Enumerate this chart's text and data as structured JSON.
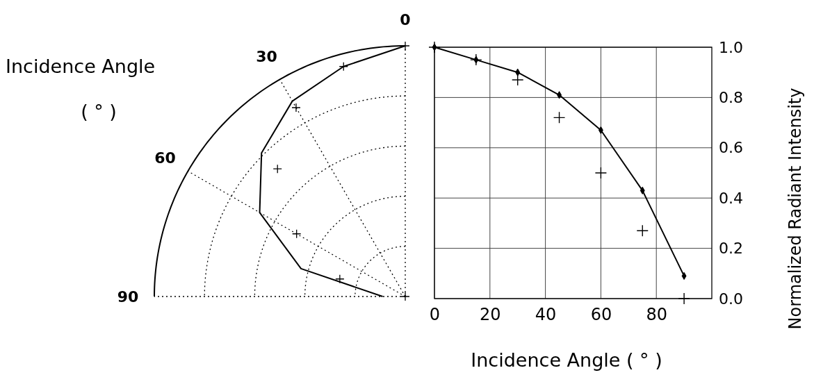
{
  "chart_data": [
    {
      "type": "other",
      "title": "Incidence Angle",
      "subtitle": "( ° )",
      "annotations": [
        "0",
        "30",
        "60",
        "90"
      ]
    },
    {
      "type": "line",
      "xlabel": "Incidence Angle ( ° )",
      "ylabel": "Normalized Radiant Intensity",
      "x": [
        0,
        15,
        30,
        45,
        60,
        75,
        90
      ],
      "xlim": [
        0,
        100
      ],
      "xticks": [
        0,
        20,
        40,
        60,
        80
      ],
      "ylim": [
        0,
        1
      ],
      "yticks": [
        {
          "value": 0,
          "label": "0.0"
        },
        0.2,
        0.4,
        0.6,
        0.8,
        {
          "value": 1,
          "label": "1.0"
        }
      ],
      "grid": true,
      "series": [
        {
          "type": "scatter",
          "color": "#000000",
          "marker": "cross",
          "values": [
            1.0,
            0.95,
            0.87,
            0.72,
            0.5,
            0.27,
            0.0
          ]
        },
        {
          "type": "line",
          "color": "#000000",
          "marker": "diamond",
          "values": [
            1.0,
            0.95,
            0.9,
            0.81,
            0.67,
            0.43,
            0.09
          ]
        }
      ]
    }
  ]
}
